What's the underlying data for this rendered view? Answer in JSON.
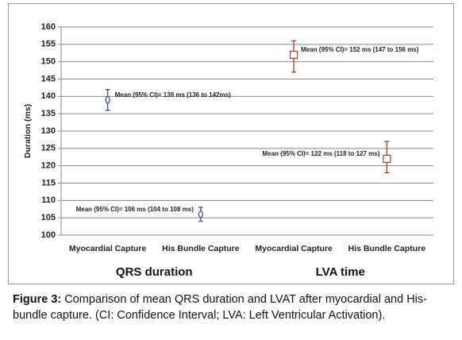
{
  "chart_data": {
    "type": "errorbar",
    "y_label": "Duration (ms)",
    "ylim": [
      100,
      160
    ],
    "yticks": [
      100,
      105,
      110,
      115,
      120,
      125,
      130,
      135,
      140,
      145,
      150,
      155,
      160
    ],
    "grid": true,
    "groups": [
      {
        "label": "QRS duration",
        "color": "#3a4a99",
        "marker": "circle",
        "categories": [
          "Myocardial Capture",
          "His Bundle Capture"
        ],
        "values": [
          139,
          106
        ],
        "low": [
          136,
          104
        ],
        "high": [
          142,
          108
        ],
        "annotations": [
          "Mean (95% CI)= 139 ms (136 to 142ms)",
          "Mean (95% CI)= 106 ms (104 to 108 ms)"
        ]
      },
      {
        "label": "LVA time",
        "color": "#b03a30",
        "marker": "square",
        "categories": [
          "Myocardial Capture",
          "His Bundle Capture"
        ],
        "values": [
          152,
          122
        ],
        "low": [
          147,
          118
        ],
        "high": [
          156,
          127
        ],
        "annotations": [
          "Mean (95% CI)= 152 ms (147 to 156 ms)",
          "Mean (95% CI)= 122 ms (118 to 127 ms)"
        ]
      }
    ]
  },
  "caption": {
    "label": "Figure 3:",
    "text": "Comparison of mean QRS duration and LVAT after myocardial and His-bundle capture. (CI: Confidence Interval; LVA: Left Ventricular Activation)."
  }
}
